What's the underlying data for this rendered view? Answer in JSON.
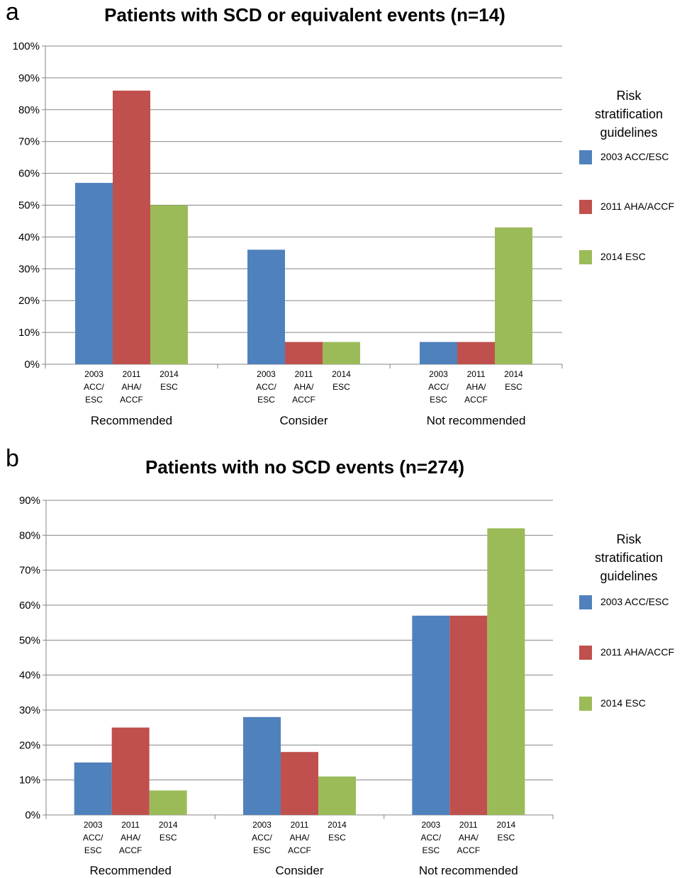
{
  "panels": [
    {
      "letter": "a",
      "title": "Patients with SCD or equivalent events (n=14)",
      "legend": {
        "title_lines": [
          "Risk",
          "stratification",
          "guidelines"
        ]
      }
    },
    {
      "letter": "b",
      "title": "Patients with no SCD events (n=274)",
      "legend": {
        "title_lines": [
          "Risk",
          "stratification",
          "guidelines"
        ]
      }
    }
  ],
  "chart_data": [
    {
      "type": "bar",
      "title": "Patients with SCD or equivalent events (n=14)",
      "categories": [
        "Recommended",
        "Consider",
        "Not recommended"
      ],
      "bar_labels": [
        [
          "2003",
          "ACC/",
          "ESC"
        ],
        [
          "2011",
          "AHA/",
          "ACCF"
        ],
        [
          "2014",
          "ESC"
        ]
      ],
      "series": [
        {
          "name": "2003 ACC/ESC",
          "color": "#4F81BD",
          "values": [
            57,
            36,
            7
          ]
        },
        {
          "name": "2011 AHA/ACCF",
          "color": "#C0504D",
          "values": [
            86,
            7,
            7
          ]
        },
        {
          "name": "2014 ESC",
          "color": "#9BBB59",
          "values": [
            50,
            7,
            43
          ]
        }
      ],
      "ylim": [
        0,
        100
      ],
      "yticks": [
        "0%",
        "10%",
        "20%",
        "30%",
        "40%",
        "50%",
        "60%",
        "70%",
        "80%",
        "90%",
        "100%"
      ],
      "grid": true,
      "legend_position": "right",
      "xlabel": "",
      "ylabel": ""
    },
    {
      "type": "bar",
      "title": "Patients with no SCD events (n=274)",
      "categories": [
        "Recommended",
        "Consider",
        "Not recommended"
      ],
      "bar_labels": [
        [
          "2003",
          "ACC/",
          "ESC"
        ],
        [
          "2011",
          "AHA/",
          "ACCF"
        ],
        [
          "2014",
          "ESC"
        ]
      ],
      "series": [
        {
          "name": "2003 ACC/ESC",
          "color": "#4F81BD",
          "values": [
            15,
            28,
            57
          ]
        },
        {
          "name": "2011 AHA/ACCF",
          "color": "#C0504D",
          "values": [
            25,
            18,
            57
          ]
        },
        {
          "name": "2014 ESC",
          "color": "#9BBB59",
          "values": [
            7,
            11,
            82
          ]
        }
      ],
      "ylim": [
        0,
        90
      ],
      "yticks": [
        "0%",
        "10%",
        "20%",
        "30%",
        "40%",
        "50%",
        "60%",
        "70%",
        "80%",
        "90%"
      ],
      "grid": true,
      "legend_position": "right",
      "xlabel": "",
      "ylabel": ""
    }
  ]
}
